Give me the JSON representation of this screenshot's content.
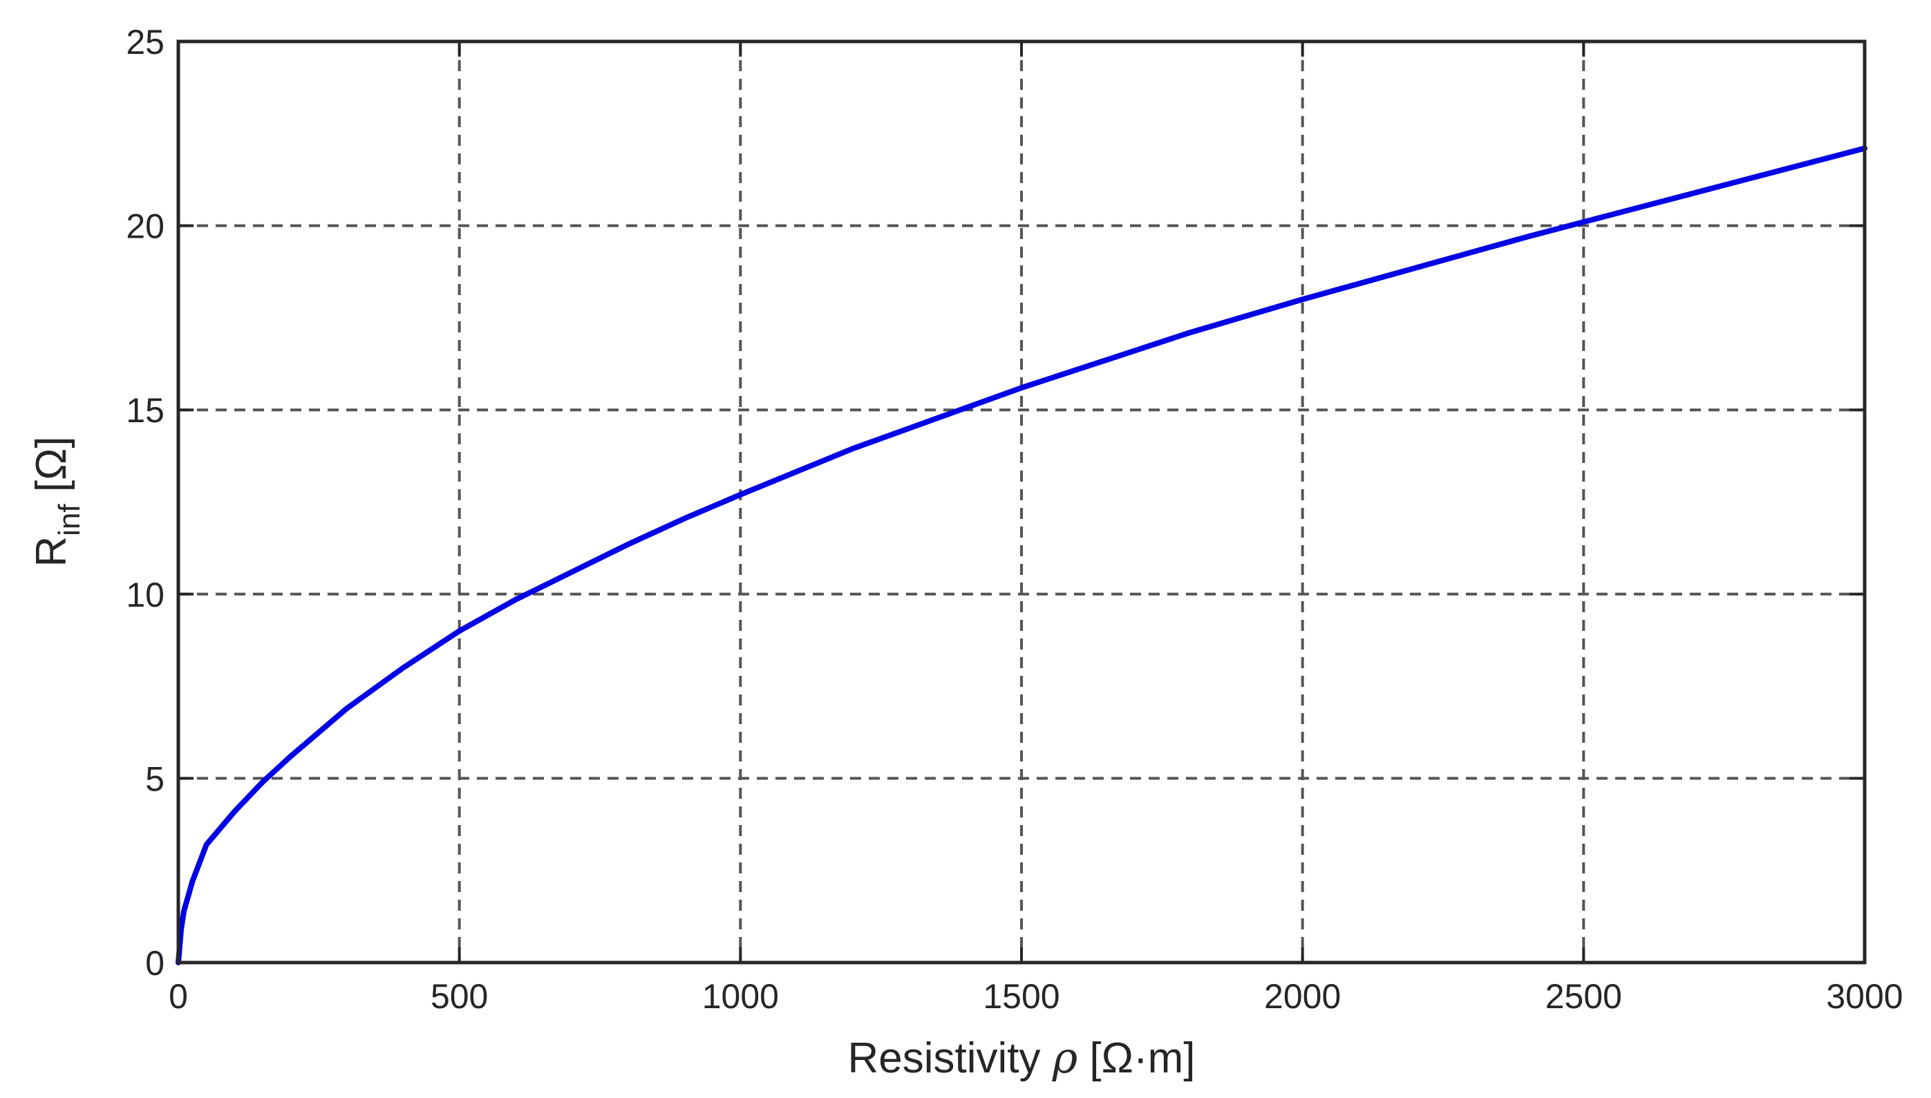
{
  "chart_data": {
    "type": "line",
    "xlabel": {
      "prefix": "Resistivity ",
      "symbol": "ρ",
      "unit": " [Ω·m]"
    },
    "ylabel": {
      "base": "R",
      "subscript": "inf",
      "unit": " [Ω]"
    },
    "xlim": [
      0,
      3000
    ],
    "ylim": [
      0,
      25
    ],
    "xticks": [
      0,
      500,
      1000,
      1500,
      2000,
      2500,
      3000
    ],
    "yticks": [
      0,
      5,
      10,
      15,
      20,
      25
    ],
    "x_tick_labels": [
      "0",
      "500",
      "1000",
      "1500",
      "2000",
      "2500",
      "3000"
    ],
    "y_tick_labels": [
      "0",
      "5",
      "10",
      "15",
      "20",
      "25"
    ],
    "grid": true,
    "grid_style": "dashed",
    "series": [
      {
        "color": "#0000e6",
        "x": [
          0,
          5,
          10,
          25,
          50,
          100,
          150,
          200,
          300,
          400,
          500,
          600,
          700,
          800,
          900,
          1000,
          1200,
          1400,
          1500,
          1600,
          1800,
          2000,
          2200,
          2400,
          2500,
          2600,
          2800,
          3000
        ],
        "y": [
          0,
          0.9,
          1.4,
          2.2,
          3.2,
          4.1,
          4.9,
          5.6,
          6.9,
          8.0,
          9.0,
          9.85,
          10.6,
          11.35,
          12.05,
          12.7,
          13.95,
          15.05,
          15.6,
          16.1,
          17.1,
          18.0,
          18.85,
          19.7,
          20.1,
          20.5,
          21.3,
          22.1
        ]
      }
    ]
  }
}
